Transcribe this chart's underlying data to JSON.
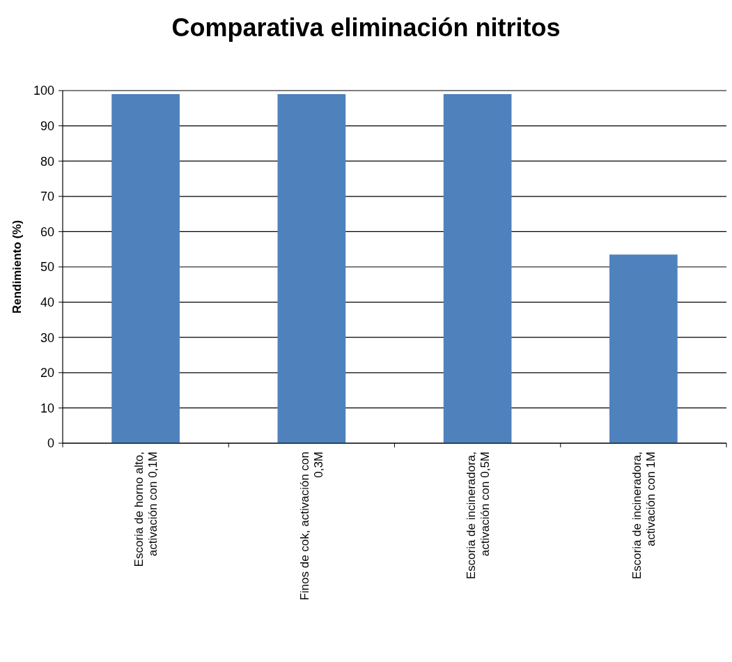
{
  "chart_data": {
    "type": "bar",
    "title": "Comparativa eliminación nitritos",
    "ylabel": "Rendimiento (%)",
    "categories": [
      "Escoria de horno alto, activación con 0,1M",
      "Finos de cok, activación con 0,3M",
      "Escoria de incineradora, activación con 0,5M",
      "Escoria de incineradora, activación con 1M"
    ],
    "values": [
      99,
      99,
      99,
      53.5
    ],
    "color": "#4f81bd",
    "ylim": [
      0,
      100
    ],
    "yticks": [
      0,
      10,
      20,
      30,
      40,
      50,
      60,
      70,
      80,
      90,
      100
    ],
    "grid": "y"
  }
}
